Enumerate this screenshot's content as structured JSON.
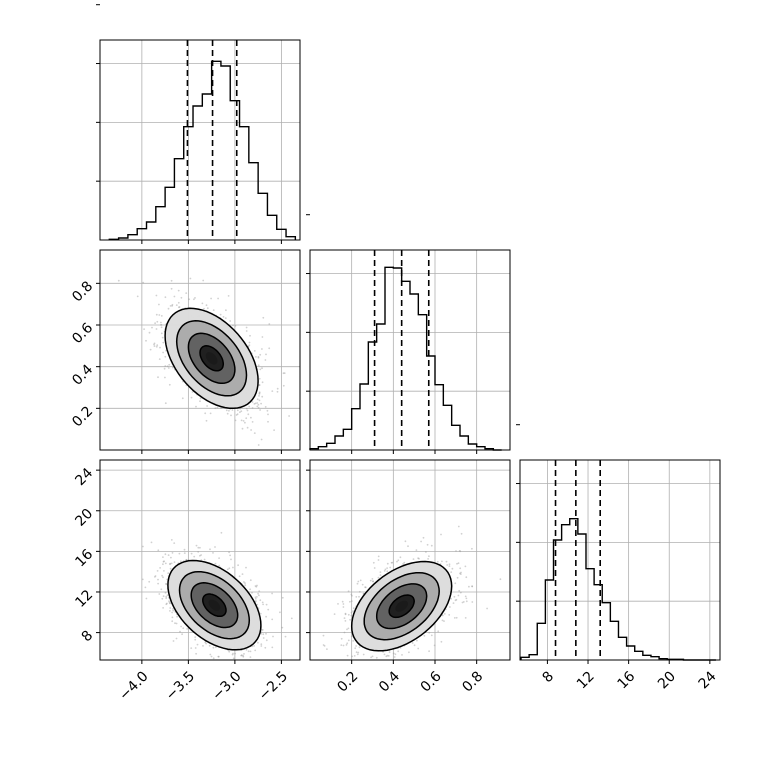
{
  "chart_data": {
    "type": "corner",
    "parameters": [
      {
        "range": [
          -4.45,
          -2.3
        ],
        "ticks": [
          -4.0,
          -3.5,
          -3.0,
          -2.5
        ],
        "tick_labels": [
          "−4.0",
          "−3.5",
          "−3.0",
          "−2.5"
        ]
      },
      {
        "range": [
          0.0,
          0.96
        ],
        "ticks": [
          0.2,
          0.4,
          0.6,
          0.8
        ],
        "tick_labels": [
          "0.2",
          "0.4",
          "0.6",
          "0.8"
        ]
      },
      {
        "range": [
          5.3,
          25.0
        ],
        "ticks": [
          8,
          12,
          16,
          20,
          24
        ],
        "tick_labels": [
          "8",
          "12",
          "16",
          "20",
          "24"
        ]
      }
    ],
    "histograms": [
      {
        "parameter": 0,
        "bin_edges": [
          -4.35,
          -4.25,
          -4.15,
          -4.05,
          -3.95,
          -3.85,
          -3.75,
          -3.65,
          -3.55,
          -3.45,
          -3.35,
          -3.25,
          -3.15,
          -3.05,
          -2.95,
          -2.85,
          -2.75,
          -2.65,
          -2.55,
          -2.45,
          -2.35
        ],
        "counts": [
          1,
          3,
          8,
          17,
          27,
          50,
          79,
          122,
          170,
          201,
          219,
          268,
          261,
          209,
          170,
          116,
          70,
          37,
          16,
          5
        ],
        "ylim": [
          0,
          300
        ],
        "quantiles": [
          -3.51,
          -3.24,
          -2.98
        ]
      },
      {
        "parameter": 1,
        "bin_edges": [
          0.0,
          0.04,
          0.08,
          0.12,
          0.16,
          0.2,
          0.24,
          0.28,
          0.32,
          0.36,
          0.4,
          0.44,
          0.48,
          0.52,
          0.56,
          0.6,
          0.64,
          0.68,
          0.72,
          0.76,
          0.8,
          0.84,
          0.88,
          0.92
        ],
        "counts": [
          2,
          5,
          10,
          21,
          31,
          62,
          99,
          162,
          189,
          274,
          273,
          253,
          234,
          203,
          141,
          98,
          67,
          37,
          21,
          9,
          5,
          2,
          0
        ],
        "ylim": [
          0,
          300
        ],
        "quantiles": [
          0.31,
          0.44,
          0.57
        ]
      },
      {
        "parameter": 2,
        "bin_edges": [
          5.4,
          6.2,
          7.0,
          7.8,
          8.6,
          9.4,
          10.2,
          11.0,
          11.8,
          12.6,
          13.4,
          14.2,
          15.0,
          15.8,
          16.6,
          17.4,
          18.2,
          19.0,
          19.8,
          20.6,
          21.4,
          22.2,
          23.0,
          23.8,
          24.6
        ],
        "counts": [
          4,
          8,
          55,
          120,
          180,
          203,
          212,
          189,
          137,
          113,
          86,
          58,
          34,
          21,
          13,
          7,
          5,
          2,
          1,
          1,
          0,
          0,
          0,
          0
        ],
        "ylim": [
          0,
          300
        ],
        "quantiles": [
          8.8,
          10.8,
          13.2
        ]
      }
    ],
    "joints": [
      {
        "x_param": 0,
        "y_param": 1,
        "mean": [
          -3.25,
          0.44
        ],
        "std": [
          0.25,
          0.12
        ],
        "corr": -0.45,
        "contour_levels": [
          0.5,
          1.0,
          1.5,
          2.0
        ]
      },
      {
        "x_param": 0,
        "y_param": 2,
        "mean": [
          -3.22,
          10.7
        ],
        "std": [
          0.25,
          2.2
        ],
        "corr": -0.45,
        "contour_levels": [
          0.5,
          1.0,
          1.5,
          2.0
        ]
      },
      {
        "x_param": 1,
        "y_param": 2,
        "mean": [
          0.44,
          10.6
        ],
        "std": [
          0.12,
          2.2
        ],
        "corr": 0.45,
        "contour_levels": [
          0.5,
          1.0,
          1.5,
          2.0
        ]
      }
    ],
    "grid": true,
    "colors": {
      "line": "#000000",
      "grid": "#b0b0b0",
      "scatter": "#9a9a9a",
      "background": "#ffffff"
    }
  }
}
